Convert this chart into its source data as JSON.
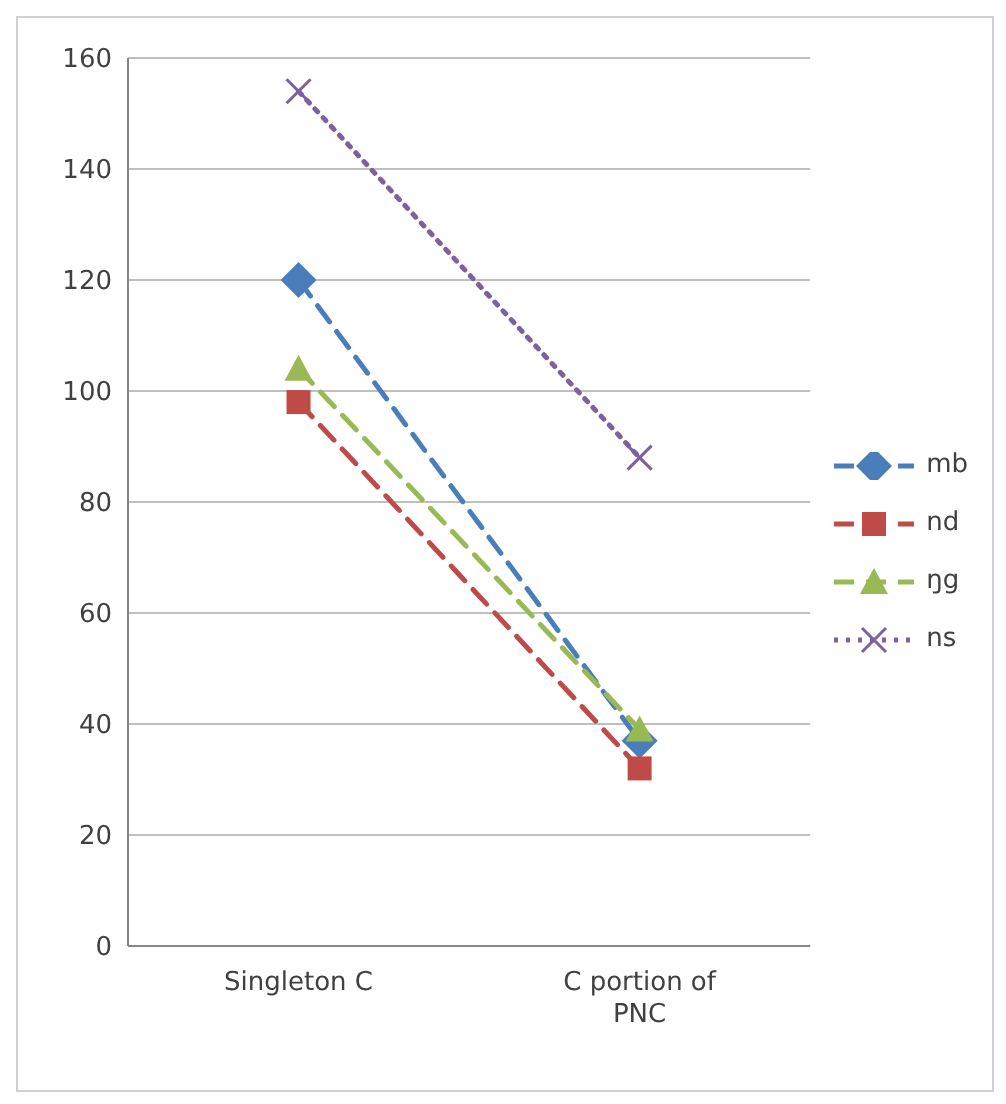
{
  "chart_data": {
    "type": "line",
    "categories": [
      "Singleton C",
      "C portion of PNC"
    ],
    "series": [
      {
        "name": "mb",
        "color": "#4a7ebb",
        "values": [
          120,
          37
        ],
        "marker": "diamond",
        "line_style": "dashed"
      },
      {
        "name": "nd",
        "color": "#be4b48",
        "values": [
          98,
          32
        ],
        "marker": "square",
        "line_style": "dashed"
      },
      {
        "name": "ŋg",
        "color": "#98b954",
        "values": [
          104,
          39
        ],
        "marker": "triangle",
        "line_style": "dashed"
      },
      {
        "name": "ns",
        "color": "#7d60a0",
        "values": [
          154,
          88
        ],
        "marker": "cross",
        "line_style": "dotted"
      }
    ],
    "ylim": [
      0,
      160
    ],
    "yticks": [
      0,
      20,
      40,
      60,
      80,
      100,
      120,
      140,
      160
    ],
    "grid": "y",
    "legend": "right"
  }
}
